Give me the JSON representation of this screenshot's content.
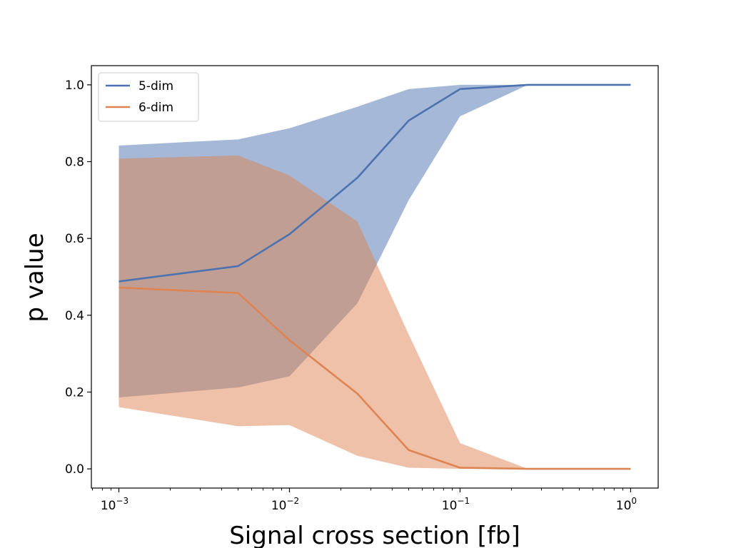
{
  "chart_data": {
    "type": "area",
    "title": "",
    "xlabel": "Signal cross section [fb]",
    "ylabel": "p value",
    "xscale": "log",
    "xlim": [
      0.00069,
      1.45
    ],
    "ylim": [
      -0.05,
      1.05
    ],
    "grid": false,
    "legend_position": "top-left",
    "x": [
      0.001,
      0.005,
      0.01,
      0.025,
      0.05,
      0.1,
      0.25,
      1.0
    ],
    "series": [
      {
        "name": "5-dim",
        "color": "#4c72b0",
        "band_color": "#a1b7d6",
        "values": [
          0.488,
          0.528,
          0.611,
          0.758,
          0.907,
          0.989,
          1.0,
          1.0
        ],
        "band_upper": [
          0.842,
          0.858,
          0.887,
          0.943,
          0.989,
          1.0,
          1.0,
          1.0
        ],
        "band_lower": [
          0.186,
          0.212,
          0.241,
          0.431,
          0.7,
          0.918,
          1.0,
          1.0
        ]
      },
      {
        "name": "6-dim",
        "color": "#dd8452",
        "band_color": "#f1c094",
        "values": [
          0.472,
          0.458,
          0.335,
          0.196,
          0.049,
          0.003,
          0.0,
          0.0
        ],
        "band_upper": [
          0.808,
          0.816,
          0.764,
          0.644,
          0.35,
          0.067,
          0.0,
          0.0
        ],
        "band_lower": [
          0.161,
          0.111,
          0.114,
          0.034,
          0.003,
          0.0,
          0.0,
          0.0
        ]
      }
    ],
    "y_ticks": [
      {
        "value": 0.0,
        "label": "0.0"
      },
      {
        "value": 0.2,
        "label": "0.2"
      },
      {
        "value": 0.4,
        "label": "0.4"
      },
      {
        "value": 0.6,
        "label": "0.6"
      },
      {
        "value": 0.8,
        "label": "0.8"
      },
      {
        "value": 1.0,
        "label": "1.0"
      }
    ],
    "x_ticks": [
      {
        "value": 0.001,
        "base": "10",
        "exp": "−3"
      },
      {
        "value": 0.01,
        "base": "10",
        "exp": "−2"
      },
      {
        "value": 0.1,
        "base": "10",
        "exp": "−1"
      },
      {
        "value": 1.0,
        "base": "10",
        "exp": "0"
      }
    ]
  }
}
